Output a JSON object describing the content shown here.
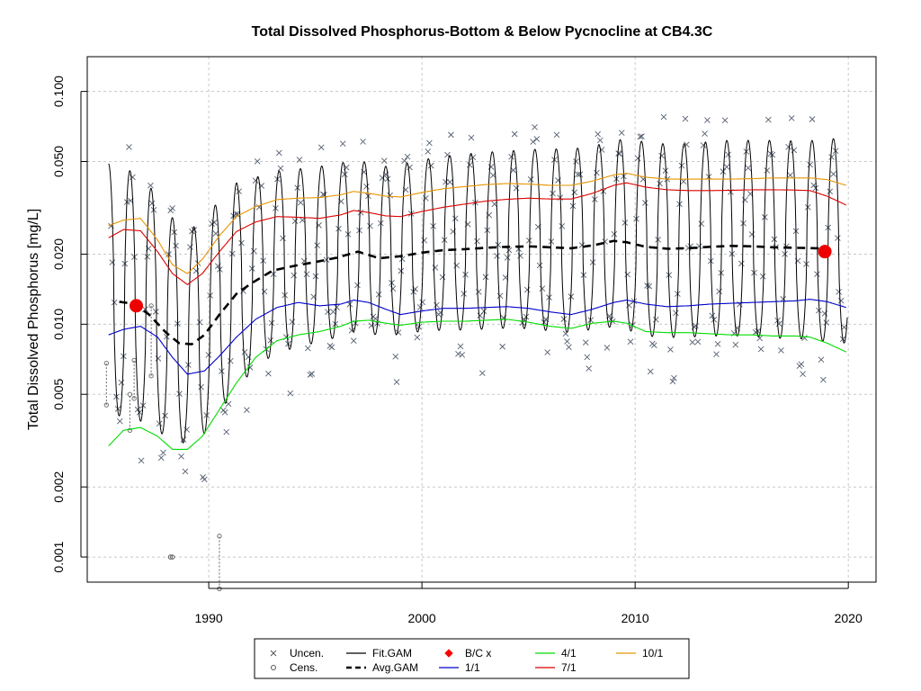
{
  "chart_data": {
    "type": "line",
    "title": "Total Dissolved Phosphorus-Bottom & Below Pycnocline at CB4.3C",
    "xlabel": "",
    "ylabel": "Total Dissolved Phosphorus [mg/L]",
    "y_scale": "log",
    "xlim": [
      1984.3,
      2021.3
    ],
    "ylim": [
      0.00078,
      0.141
    ],
    "x_ticks": [
      1990,
      2000,
      2010,
      2020
    ],
    "x_tick_labels": [
      "1990",
      "2000",
      "2010",
      "2020"
    ],
    "y_ticks": [
      0.001,
      0.002,
      0.005,
      0.01,
      0.02,
      0.05,
      0.1
    ],
    "y_tick_labels": [
      "0.001",
      "0.002",
      "0.005",
      "0.010",
      "0.020",
      "0.050",
      "0.100"
    ],
    "grid": true,
    "legend_position": "bottom",
    "legend": [
      {
        "label": "Uncen.",
        "type": "x-marker",
        "color": "#555555"
      },
      {
        "label": "Cens.",
        "type": "circle-marker",
        "color": "#555555"
      },
      {
        "label": "Fit.GAM",
        "type": "line",
        "color": "#000000"
      },
      {
        "label": "Avg.GAM",
        "type": "dashed-line",
        "color": "#000000"
      },
      {
        "label": "B/C x",
        "type": "diamond-marker",
        "color": "#ff0000"
      },
      {
        "label": "1/1",
        "type": "line",
        "color": "#0000cd"
      },
      {
        "label": "4/1",
        "type": "line",
        "color": "#00dd00"
      },
      {
        "label": "7/1",
        "type": "line",
        "color": "#dd0000"
      },
      {
        "label": "10/1",
        "type": "line",
        "color": "#e69500"
      }
    ],
    "series": [
      {
        "name": "Avg.GAM",
        "color": "#000000",
        "dash": true,
        "x": [
          1985.8,
          1986.5,
          1987.2,
          1988.0,
          1988.6,
          1989.2,
          1989.8,
          1990.5,
          1991.3,
          1992.0,
          1993.0,
          1994.0,
          1995.0,
          1996.0,
          1997.0,
          1998.0,
          1999.0,
          2000.0,
          2001.0,
          2002.0,
          2003.0,
          2004.0,
          2005.0,
          2006.0,
          2007.0,
          2008.0,
          2009.0,
          2009.6,
          2010.5,
          2011.5,
          2012.5,
          2013.5,
          2014.5,
          2015.5,
          2016.5,
          2017.5,
          2018.5,
          2019.0
        ],
        "y": [
          0.0125,
          0.0122,
          0.011,
          0.0092,
          0.0083,
          0.0082,
          0.009,
          0.011,
          0.0135,
          0.015,
          0.017,
          0.0178,
          0.0185,
          0.0193,
          0.0205,
          0.0192,
          0.0196,
          0.0203,
          0.0208,
          0.021,
          0.0213,
          0.0215,
          0.0216,
          0.0214,
          0.0212,
          0.0218,
          0.0228,
          0.0225,
          0.0215,
          0.0211,
          0.0212,
          0.0215,
          0.0217,
          0.0216,
          0.0214,
          0.0213,
          0.0212,
          0.0211
        ]
      },
      {
        "name": "1/1",
        "color": "#0000cd",
        "x": [
          1985.3,
          1986.0,
          1986.8,
          1987.6,
          1988.3,
          1989.0,
          1989.8,
          1990.5,
          1991.3,
          1992.2,
          1993.2,
          1994.2,
          1995.2,
          1996.2,
          1996.8,
          1997.5,
          1998.3,
          1999.0,
          2000.0,
          2001.0,
          2002.0,
          2003.0,
          2004.0,
          2005.0,
          2006.0,
          2007.0,
          2008.0,
          2009.0,
          2009.6,
          2010.5,
          2011.5,
          2012.5,
          2013.5,
          2014.5,
          2015.5,
          2016.5,
          2017.5,
          2018.2,
          2019.0,
          2019.9
        ],
        "y": [
          0.009,
          0.0095,
          0.0098,
          0.0088,
          0.0072,
          0.0061,
          0.0063,
          0.0073,
          0.0088,
          0.0105,
          0.0118,
          0.0124,
          0.012,
          0.0122,
          0.0127,
          0.0124,
          0.0116,
          0.011,
          0.0114,
          0.0117,
          0.0117,
          0.0118,
          0.0119,
          0.0117,
          0.0113,
          0.011,
          0.0116,
          0.0124,
          0.0127,
          0.0122,
          0.0119,
          0.012,
          0.0122,
          0.0123,
          0.0124,
          0.0125,
          0.0126,
          0.0128,
          0.0125,
          0.0118
        ]
      },
      {
        "name": "4/1",
        "color": "#00dd00",
        "x": [
          1985.3,
          1986.0,
          1986.8,
          1987.6,
          1988.3,
          1989.0,
          1989.7,
          1990.5,
          1991.3,
          1992.2,
          1993.2,
          1994.2,
          1995.2,
          1996.2,
          1996.8,
          1997.5,
          1998.3,
          1999.0,
          2000.0,
          2001.0,
          2002.0,
          2003.0,
          2004.0,
          2005.0,
          2006.0,
          2007.0,
          2008.0,
          2009.0,
          2009.6,
          2010.5,
          2011.5,
          2012.5,
          2013.5,
          2014.5,
          2015.5,
          2016.5,
          2017.5,
          2018.2,
          2019.0,
          2019.9
        ],
        "y": [
          0.003,
          0.0035,
          0.0036,
          0.0033,
          0.0029,
          0.0029,
          0.0033,
          0.0043,
          0.0056,
          0.0072,
          0.0085,
          0.009,
          0.0093,
          0.0098,
          0.0103,
          0.0104,
          0.0101,
          0.0099,
          0.0102,
          0.0103,
          0.0103,
          0.0104,
          0.0105,
          0.0102,
          0.0098,
          0.0096,
          0.0101,
          0.0103,
          0.0101,
          0.0093,
          0.0092,
          0.0092,
          0.0091,
          0.009,
          0.009,
          0.0089,
          0.0089,
          0.0088,
          0.0083,
          0.0076
        ]
      },
      {
        "name": "7/1",
        "color": "#dd0000",
        "x": [
          1985.3,
          1986.0,
          1986.8,
          1987.6,
          1988.3,
          1989.0,
          1989.7,
          1990.5,
          1991.3,
          1992.2,
          1993.2,
          1994.2,
          1995.2,
          1996.2,
          1996.8,
          1997.5,
          1998.3,
          1999.0,
          2000.0,
          2001.0,
          2002.0,
          2003.0,
          2004.0,
          2005.0,
          2006.0,
          2007.0,
          2008.0,
          2009.0,
          2009.6,
          2010.5,
          2011.5,
          2012.5,
          2013.5,
          2014.5,
          2015.5,
          2016.5,
          2017.5,
          2018.2,
          2019.0,
          2019.9
        ],
        "y": [
          0.0235,
          0.0255,
          0.0252,
          0.0205,
          0.0165,
          0.0148,
          0.0165,
          0.0205,
          0.025,
          0.0275,
          0.029,
          0.0288,
          0.0285,
          0.0295,
          0.0308,
          0.0302,
          0.0292,
          0.029,
          0.0305,
          0.0318,
          0.0328,
          0.0338,
          0.0344,
          0.0348,
          0.0345,
          0.0345,
          0.0365,
          0.0395,
          0.0405,
          0.0388,
          0.0378,
          0.0375,
          0.0375,
          0.0376,
          0.0378,
          0.0378,
          0.0377,
          0.0375,
          0.0355,
          0.0325
        ]
      },
      {
        "name": "10/1",
        "color": "#e69500",
        "x": [
          1985.3,
          1986.0,
          1986.8,
          1987.6,
          1988.3,
          1989.0,
          1989.7,
          1990.5,
          1991.3,
          1992.2,
          1993.2,
          1994.2,
          1995.2,
          1996.2,
          1996.8,
          1997.5,
          1998.3,
          1999.0,
          2000.0,
          2001.0,
          2002.0,
          2003.0,
          2004.0,
          2005.0,
          2006.0,
          2007.0,
          2008.0,
          2009.0,
          2009.6,
          2010.5,
          2011.5,
          2012.5,
          2013.5,
          2014.5,
          2015.5,
          2016.5,
          2017.5,
          2018.2,
          2019.0,
          2019.9
        ],
        "y": [
          0.0265,
          0.028,
          0.0285,
          0.023,
          0.018,
          0.0165,
          0.019,
          0.024,
          0.029,
          0.032,
          0.0343,
          0.0348,
          0.035,
          0.036,
          0.0372,
          0.0365,
          0.0355,
          0.0352,
          0.0368,
          0.0382,
          0.039,
          0.0398,
          0.0402,
          0.04,
          0.0395,
          0.0395,
          0.0412,
          0.0438,
          0.0445,
          0.0428,
          0.042,
          0.042,
          0.042,
          0.042,
          0.0422,
          0.0425,
          0.0425,
          0.0425,
          0.0418,
          0.0395
        ]
      }
    ],
    "bc_points": [
      {
        "x": 1986.6,
        "y": 0.012
      },
      {
        "x": 2018.9,
        "y": 0.0205
      }
    ],
    "censored_points": [
      {
        "x": 1985.2,
        "y_low": 0.0045,
        "y_high": 0.0068
      },
      {
        "x": 1986.3,
        "y_low": 0.0035,
        "y_high": 0.005
      },
      {
        "x": 1986.5,
        "y_low": 0.0048,
        "y_high": 0.007
      },
      {
        "x": 1987.3,
        "y_low": 0.006,
        "y_high": 0.012
      },
      {
        "x": 1988.2,
        "y_low": 0.001,
        "y_high": 0.001
      },
      {
        "x": 1988.3,
        "y_low": 0.001,
        "y_high": 0.001
      },
      {
        "x": 1990.5,
        "y_low": 0.00073,
        "y_high": 0.00123
      }
    ],
    "fit_gam_description": "seasonal oscillation around Avg.GAM, peaks near 10/1 line and troughs near 4/1 line, period 1 year"
  }
}
